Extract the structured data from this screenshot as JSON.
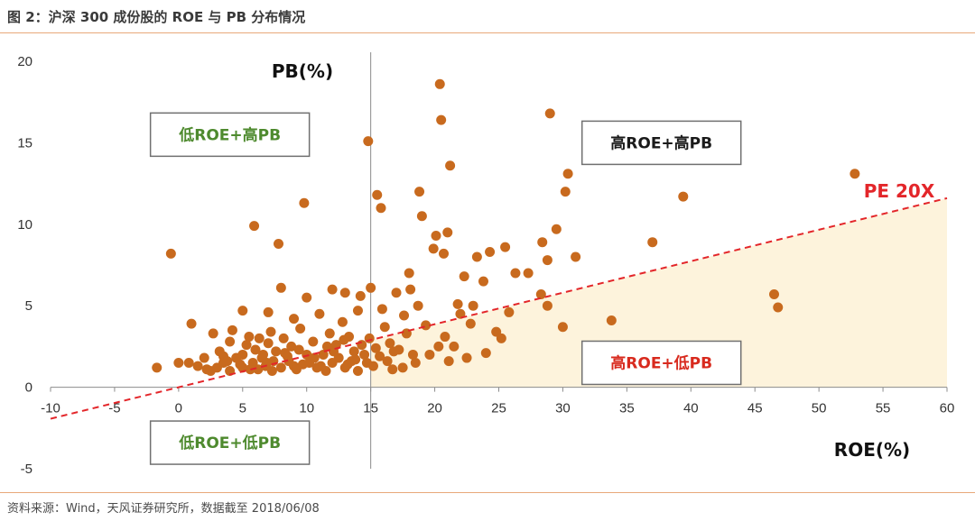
{
  "figure": {
    "title": "图 2：沪深 300 成份股的 ROE 与 PB 分布情况",
    "source": "资料来源：Wind，天风证券研究所，数据截至 2018/06/08"
  },
  "chart_data": {
    "type": "scatter",
    "xlabel": "ROE(%)",
    "ylabel": "PB(%)",
    "xlim": [
      -10,
      60
    ],
    "ylim": [
      -5,
      20
    ],
    "x_ticks": [
      -10,
      -5,
      0,
      5,
      10,
      15,
      20,
      25,
      30,
      35,
      40,
      45,
      50,
      55,
      60
    ],
    "y_ticks": [
      -5,
      0,
      5,
      10,
      15,
      20
    ],
    "grid": false,
    "vertical_divider_x": 15,
    "pe_line": {
      "label": "PE 20X",
      "pe": 20,
      "color": "#e3262a",
      "style": "dashed"
    },
    "shaded_region": {
      "description_color": "#fdf3dc"
    },
    "point_color": "#c86a1e",
    "quadrant_labels": [
      {
        "text": "低ROE+高PB",
        "color": "#4e8a2e",
        "anchor": [
          -2.2,
          15.5
        ]
      },
      {
        "text": "高ROE+高PB",
        "color": "#1a1a1a",
        "anchor": [
          31.5,
          15.0
        ]
      },
      {
        "text": "高ROE+低PB",
        "color": "#d82a1e",
        "anchor": [
          31.5,
          1.5
        ]
      },
      {
        "text": "低ROE+低PB",
        "color": "#4e8a2e",
        "anchor": [
          -2.2,
          -3.4
        ]
      }
    ],
    "points": [
      [
        -1.7,
        1.2
      ],
      [
        -0.6,
        8.2
      ],
      [
        0,
        1.5
      ],
      [
        1,
        3.9
      ],
      [
        0.8,
        1.5
      ],
      [
        1.5,
        1.3
      ],
      [
        2,
        1.8
      ],
      [
        2.5,
        1.0
      ],
      [
        3,
        1.2
      ],
      [
        3.2,
        2.2
      ],
      [
        2.7,
        3.3
      ],
      [
        3.5,
        1.5
      ],
      [
        4,
        1.0
      ],
      [
        4.2,
        3.5
      ],
      [
        4,
        2.8
      ],
      [
        4.5,
        1.8
      ],
      [
        5,
        1.2
      ],
      [
        5,
        2.0
      ],
      [
        5,
        4.7
      ],
      [
        5.5,
        3.1
      ],
      [
        5.8,
        1.5
      ],
      [
        5.9,
        9.9
      ],
      [
        6,
        2.3
      ],
      [
        6.2,
        1.1
      ],
      [
        6.3,
        3.0
      ],
      [
        6.5,
        1.8
      ],
      [
        6.8,
        1.3
      ],
      [
        7,
        2.7
      ],
      [
        7,
        4.6
      ],
      [
        7.2,
        3.4
      ],
      [
        7.4,
        1.6
      ],
      [
        7.6,
        2.2
      ],
      [
        7.8,
        8.8
      ],
      [
        8,
        1.2
      ],
      [
        8,
        6.1
      ],
      [
        8.2,
        3.0
      ],
      [
        8.5,
        1.9
      ],
      [
        8.8,
        2.5
      ],
      [
        9,
        1.3
      ],
      [
        9,
        4.2
      ],
      [
        9.2,
        1.1
      ],
      [
        9.5,
        3.6
      ],
      [
        9.8,
        11.3
      ],
      [
        10,
        2.0
      ],
      [
        10,
        5.5
      ],
      [
        10.2,
        1.5
      ],
      [
        10.5,
        2.8
      ],
      [
        10.8,
        1.2
      ],
      [
        11,
        4.5
      ],
      [
        11.3,
        2.0
      ],
      [
        11.5,
        1.0
      ],
      [
        11.8,
        3.3
      ],
      [
        12,
        1.5
      ],
      [
        12,
        6.0
      ],
      [
        12.3,
        2.6
      ],
      [
        12.5,
        1.8
      ],
      [
        12.8,
        4.0
      ],
      [
        13,
        1.2
      ],
      [
        13,
        5.8
      ],
      [
        13.3,
        3.1
      ],
      [
        13.5,
        1.6
      ],
      [
        13.7,
        2.2
      ],
      [
        14,
        1.0
      ],
      [
        14,
        4.7
      ],
      [
        14.2,
        5.6
      ],
      [
        14.5,
        2.0
      ],
      [
        14.7,
        1.5
      ],
      [
        14.8,
        15.1
      ],
      [
        14.9,
        3.0
      ],
      [
        15,
        6.1
      ],
      [
        15.2,
        1.3
      ],
      [
        15.4,
        2.4
      ],
      [
        15.5,
        11.8
      ],
      [
        15.8,
        11.0
      ],
      [
        15.9,
        4.8
      ],
      [
        16.1,
        3.7
      ],
      [
        16.3,
        1.6
      ],
      [
        16.5,
        2.7
      ],
      [
        16.7,
        1.1
      ],
      [
        17,
        5.8
      ],
      [
        17.2,
        2.3
      ],
      [
        17.5,
        1.2
      ],
      [
        17.8,
        3.3
      ],
      [
        18,
        7.0
      ],
      [
        18.1,
        6.0
      ],
      [
        18.3,
        2.0
      ],
      [
        18.5,
        1.5
      ],
      [
        18.7,
        5.0
      ],
      [
        18.8,
        12.0
      ],
      [
        19,
        10.5
      ],
      [
        19.3,
        3.8
      ],
      [
        19.6,
        2.0
      ],
      [
        19.9,
        8.5
      ],
      [
        20.1,
        9.3
      ],
      [
        20.3,
        2.5
      ],
      [
        20.4,
        18.6
      ],
      [
        20.5,
        16.4
      ],
      [
        20.7,
        8.2
      ],
      [
        20.8,
        3.1
      ],
      [
        21,
        9.5
      ],
      [
        21.1,
        1.6
      ],
      [
        21.2,
        13.6
      ],
      [
        21.5,
        2.5
      ],
      [
        21.8,
        5.1
      ],
      [
        22,
        4.5
      ],
      [
        22.3,
        6.8
      ],
      [
        22.5,
        1.8
      ],
      [
        22.8,
        3.9
      ],
      [
        23,
        5.0
      ],
      [
        23.3,
        8.0
      ],
      [
        23.8,
        6.5
      ],
      [
        24,
        2.1
      ],
      [
        24.3,
        8.3
      ],
      [
        24.8,
        3.4
      ],
      [
        25.2,
        3.0
      ],
      [
        25.5,
        8.6
      ],
      [
        25.8,
        4.6
      ],
      [
        26.3,
        7.0
      ],
      [
        27.3,
        7.0
      ],
      [
        28.3,
        5.7
      ],
      [
        28.4,
        8.9
      ],
      [
        28.8,
        7.8
      ],
      [
        28.8,
        5.0
      ],
      [
        29,
        16.8
      ],
      [
        29.5,
        9.7
      ],
      [
        30,
        3.7
      ],
      [
        30.2,
        12.0
      ],
      [
        30.4,
        13.1
      ],
      [
        31,
        8.0
      ],
      [
        33.8,
        4.1
      ],
      [
        37,
        8.9
      ],
      [
        39.4,
        11.7
      ],
      [
        46.5,
        5.7
      ],
      [
        46.8,
        4.9
      ],
      [
        52.8,
        13.1
      ],
      [
        3.5,
        1.9
      ],
      [
        4.8,
        1.4
      ],
      [
        5.3,
        2.6
      ],
      [
        6.6,
        2.0
      ],
      [
        7.3,
        1.0
      ],
      [
        8.6,
        1.6
      ],
      [
        9.4,
        2.3
      ],
      [
        10.6,
        1.8
      ],
      [
        11.1,
        1.3
      ],
      [
        12.1,
        2.2
      ],
      [
        12.9,
        2.9
      ],
      [
        13.8,
        1.7
      ],
      [
        14.3,
        2.6
      ],
      [
        15.7,
        1.9
      ],
      [
        16.8,
        2.2
      ],
      [
        17.6,
        4.4
      ],
      [
        2.2,
        1.1
      ],
      [
        3.8,
        1.6
      ],
      [
        5.6,
        1.1
      ],
      [
        6.9,
        1.5
      ],
      [
        8.3,
        2.1
      ],
      [
        9.7,
        1.4
      ],
      [
        11.6,
        2.5
      ],
      [
        13.2,
        1.4
      ]
    ]
  }
}
